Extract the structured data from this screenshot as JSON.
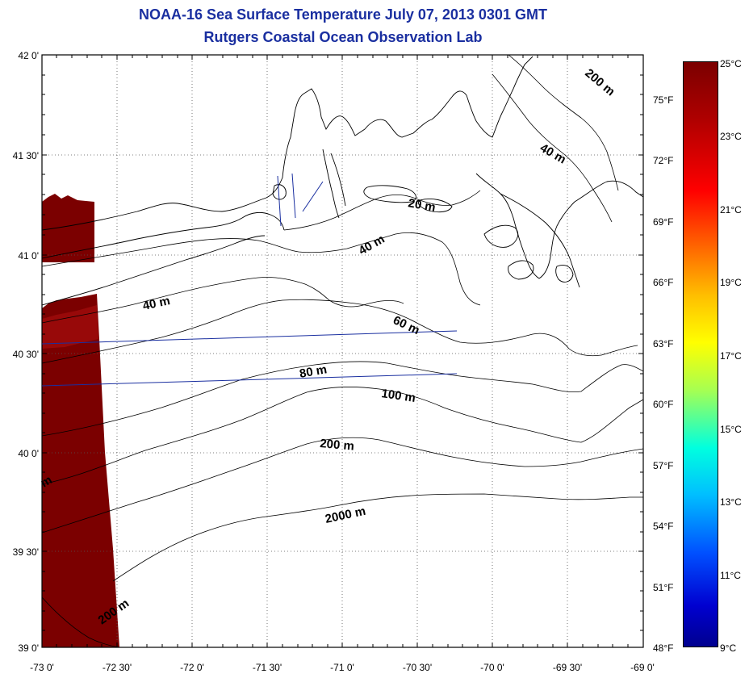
{
  "title_line1": "NOAA-16 Sea Surface Temperature July 07, 2013 0301 GMT",
  "title_line2": "Rutgers Coastal Ocean Observation Lab",
  "lat_labels": [
    "42 0'",
    "41 30'",
    "41 0'",
    "40 30'",
    "40 0'",
    "39 30'",
    "39 0'"
  ],
  "lon_labels": [
    "-73 0'",
    "-72 30'",
    "-72 0'",
    "-71 30'",
    "-71 0'",
    "-70 30'",
    "-70 0'",
    "-69 30'",
    "-69 0'"
  ],
  "fahrenheit_labels": [
    "75°F",
    "72°F",
    "69°F",
    "66°F",
    "63°F",
    "60°F",
    "57°F",
    "54°F",
    "51°F",
    "48°F"
  ],
  "celsius_labels": [
    "25°C",
    "23°C",
    "21°C",
    "19°C",
    "17°C",
    "15°C",
    "13°C",
    "11°C",
    "9°C"
  ],
  "isobath_labels": [
    "200 m",
    "40 m",
    "20 m",
    "40 m",
    "40 m",
    "60 m",
    "80 m",
    "100 m",
    "200 m",
    "2000 m",
    "200 m",
    "m"
  ],
  "colors": {
    "title": "#1a2fa0",
    "sst_warm": "#7b0000",
    "transect": "#1a2fa0",
    "grid": "#555555"
  }
}
